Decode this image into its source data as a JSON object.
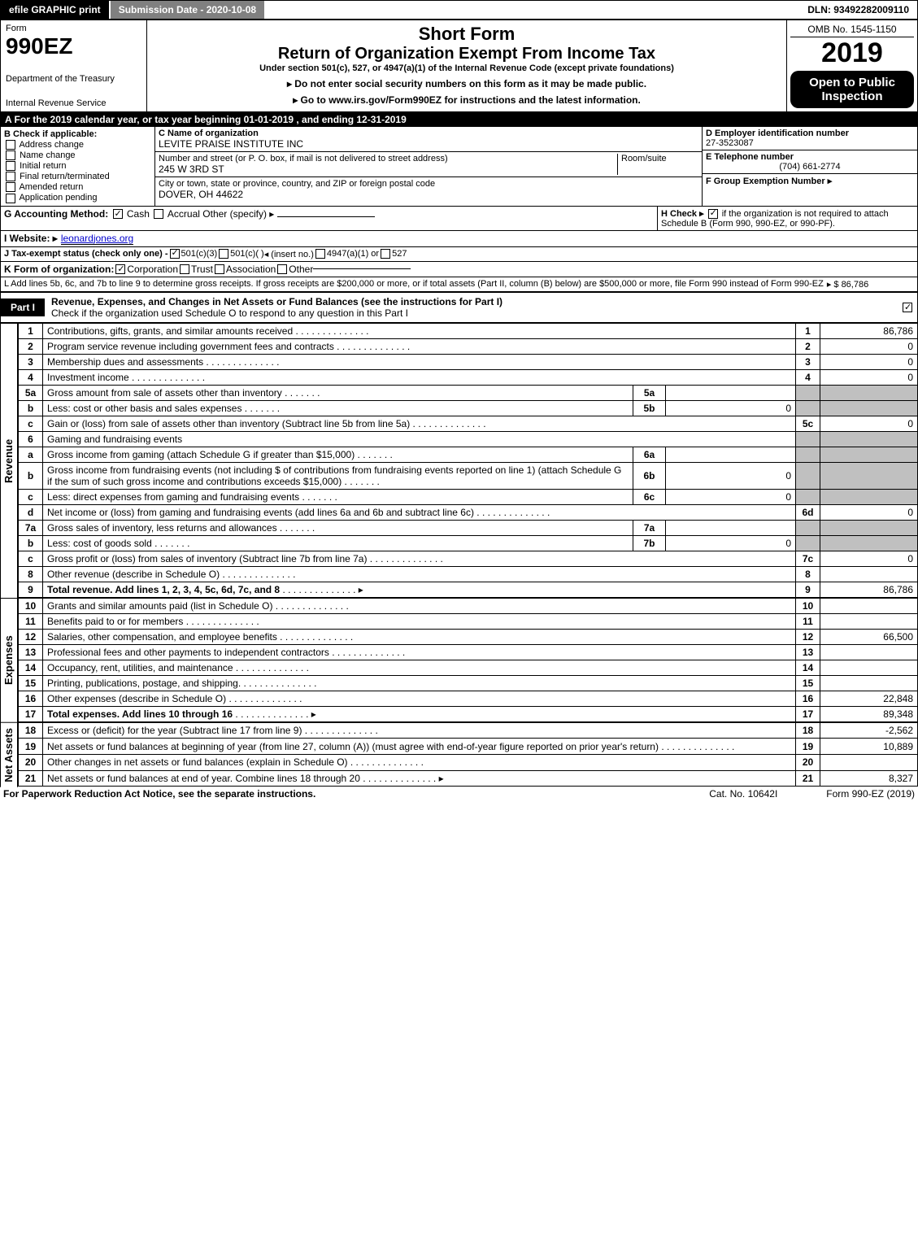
{
  "colors": {
    "black": "#000000",
    "white": "#ffffff",
    "gray_btn": "#808080",
    "shade": "#c0c0c0",
    "link": "#0000cc"
  },
  "fonts": {
    "base_family": "Arial, Helvetica, sans-serif",
    "base_size_pt": 9,
    "form_no_pt": 21,
    "year_pt": 26,
    "short_form_pt": 17,
    "return_pt": 15
  },
  "topbar": {
    "efile": "efile GRAPHIC print",
    "submission": "Submission Date - 2020-10-08",
    "dln": "DLN: 93492282009110"
  },
  "header": {
    "form_word": "Form",
    "form_no": "990EZ",
    "short_form": "Short Form",
    "return_title": "Return of Organization Exempt From Income Tax",
    "under": "Under section 501(c), 527, or 4947(a)(1) of the Internal Revenue Code (except private foundations)",
    "ssn_note": "▸ Do not enter social security numbers on this form as it may be made public.",
    "goto": "▸ Go to www.irs.gov/Form990EZ for instructions and the latest information.",
    "omb": "OMB No. 1545-1150",
    "year": "2019",
    "open": "Open to Public Inspection",
    "dept": "Department of the Treasury",
    "irs": "Internal Revenue Service"
  },
  "calendar": "A  For the 2019 calendar year, or tax year beginning 01-01-2019 , and ending 12-31-2019",
  "boxB": {
    "label": "B  Check if applicable:",
    "address_change": "Address change",
    "name_change": "Name change",
    "initial_return": "Initial return",
    "final_return": "Final return/terminated",
    "amended": "Amended return",
    "app_pending": "Application pending"
  },
  "boxC": {
    "c_label": "C Name of organization",
    "org_name": "LEVITE PRAISE INSTITUTE INC",
    "addr_label": "Number and street (or P. O. box, if mail is not delivered to street address)",
    "room_label": "Room/suite",
    "street": "245 W 3RD ST",
    "city_label": "City or town, state or province, country, and ZIP or foreign postal code",
    "city": "DOVER, OH  44622"
  },
  "boxD": {
    "d_label": "D Employer identification number",
    "ein": "27-3523087",
    "e_label": "E Telephone number",
    "phone": "(704) 661-2774",
    "f_label": "F Group Exemption Number ▸"
  },
  "lineG": {
    "label": "G Accounting Method:",
    "cash": "Cash",
    "accrual": "Accrual",
    "other": "Other (specify) ▸"
  },
  "lineH": {
    "label": "H  Check ▸",
    "text": "if the organization is not required to attach Schedule B (Form 990, 990-EZ, or 990-PF)."
  },
  "lineI": {
    "label": "I Website: ▸",
    "site": "leonardjones.org"
  },
  "lineJ": {
    "label": "J Tax-exempt status (check only one) -",
    "opt1": "501(c)(3)",
    "opt2": "501(c)( )",
    "insert": "◂ (insert no.)",
    "opt3": "4947(a)(1) or",
    "opt4": "527"
  },
  "lineK": {
    "label": "K Form of organization:",
    "corp": "Corporation",
    "trust": "Trust",
    "assoc": "Association",
    "other": "Other"
  },
  "lineL": {
    "text": "L Add lines 5b, 6c, and 7b to line 9 to determine gross receipts. If gross receipts are $200,000 or more, or if total assets (Part II, column (B) below) are $500,000 or more, file Form 990 instead of Form 990-EZ",
    "amount": "▸ $ 86,786"
  },
  "part1": {
    "tag": "Part I",
    "title": "Revenue, Expenses, and Changes in Net Assets or Fund Balances (see the instructions for Part I)",
    "check_line": "Check if the organization used Schedule O to respond to any question in this Part I"
  },
  "sections": {
    "revenue_label": "Revenue",
    "expenses_label": "Expenses",
    "netassets_label": "Net Assets"
  },
  "revenue": [
    {
      "ln": "1",
      "desc": "Contributions, gifts, grants, and similar amounts received",
      "num": "1",
      "val": "86,786"
    },
    {
      "ln": "2",
      "desc": "Program service revenue including government fees and contracts",
      "num": "2",
      "val": "0"
    },
    {
      "ln": "3",
      "desc": "Membership dues and assessments",
      "num": "3",
      "val": "0"
    },
    {
      "ln": "4",
      "desc": "Investment income",
      "num": "4",
      "val": "0"
    },
    {
      "ln": "5a",
      "desc": "Gross amount from sale of assets other than inventory",
      "inner": "5a",
      "innerval": ""
    },
    {
      "ln": "b",
      "desc": "Less: cost or other basis and sales expenses",
      "inner": "5b",
      "innerval": "0"
    },
    {
      "ln": "c",
      "desc": "Gain or (loss) from sale of assets other than inventory (Subtract line 5b from line 5a)",
      "num": "5c",
      "val": "0"
    },
    {
      "ln": "6",
      "desc": "Gaming and fundraising events",
      "shade": true
    },
    {
      "ln": "a",
      "desc": "Gross income from gaming (attach Schedule G if greater than $15,000)",
      "inner": "6a",
      "innerval": ""
    },
    {
      "ln": "b",
      "desc": "Gross income from fundraising events (not including $                     of contributions from fundraising events reported on line 1) (attach Schedule G if the sum of such gross income and contributions exceeds $15,000)",
      "inner": "6b",
      "innerval": "0"
    },
    {
      "ln": "c",
      "desc": "Less: direct expenses from gaming and fundraising events",
      "inner": "6c",
      "innerval": "0"
    },
    {
      "ln": "d",
      "desc": "Net income or (loss) from gaming and fundraising events (add lines 6a and 6b and subtract line 6c)",
      "num": "6d",
      "val": "0"
    },
    {
      "ln": "7a",
      "desc": "Gross sales of inventory, less returns and allowances",
      "inner": "7a",
      "innerval": ""
    },
    {
      "ln": "b",
      "desc": "Less: cost of goods sold",
      "inner": "7b",
      "innerval": "0"
    },
    {
      "ln": "c",
      "desc": "Gross profit or (loss) from sales of inventory (Subtract line 7b from line 7a)",
      "num": "7c",
      "val": "0"
    },
    {
      "ln": "8",
      "desc": "Other revenue (describe in Schedule O)",
      "num": "8",
      "val": ""
    },
    {
      "ln": "9",
      "desc": "Total revenue. Add lines 1, 2, 3, 4, 5c, 6d, 7c, and 8",
      "num": "9",
      "val": "86,786",
      "bold": true,
      "arrow": true
    }
  ],
  "expenses": [
    {
      "ln": "10",
      "desc": "Grants and similar amounts paid (list in Schedule O)",
      "num": "10",
      "val": ""
    },
    {
      "ln": "11",
      "desc": "Benefits paid to or for members",
      "num": "11",
      "val": ""
    },
    {
      "ln": "12",
      "desc": "Salaries, other compensation, and employee benefits",
      "num": "12",
      "val": "66,500"
    },
    {
      "ln": "13",
      "desc": "Professional fees and other payments to independent contractors",
      "num": "13",
      "val": ""
    },
    {
      "ln": "14",
      "desc": "Occupancy, rent, utilities, and maintenance",
      "num": "14",
      "val": ""
    },
    {
      "ln": "15",
      "desc": "Printing, publications, postage, and shipping.",
      "num": "15",
      "val": ""
    },
    {
      "ln": "16",
      "desc": "Other expenses (describe in Schedule O)",
      "num": "16",
      "val": "22,848"
    },
    {
      "ln": "17",
      "desc": "Total expenses. Add lines 10 through 16",
      "num": "17",
      "val": "89,348",
      "bold": true,
      "arrow": true
    }
  ],
  "netassets": [
    {
      "ln": "18",
      "desc": "Excess or (deficit) for the year (Subtract line 17 from line 9)",
      "num": "18",
      "val": "-2,562"
    },
    {
      "ln": "19",
      "desc": "Net assets or fund balances at beginning of year (from line 27, column (A)) (must agree with end-of-year figure reported on prior year's return)",
      "num": "19",
      "val": "10,889"
    },
    {
      "ln": "20",
      "desc": "Other changes in net assets or fund balances (explain in Schedule O)",
      "num": "20",
      "val": ""
    },
    {
      "ln": "21",
      "desc": "Net assets or fund balances at end of year. Combine lines 18 through 20",
      "num": "21",
      "val": "8,327",
      "arrow": true
    }
  ],
  "footer": {
    "paperwork": "For Paperwork Reduction Act Notice, see the separate instructions.",
    "cat": "Cat. No. 10642I",
    "form": "Form 990-EZ (2019)"
  }
}
